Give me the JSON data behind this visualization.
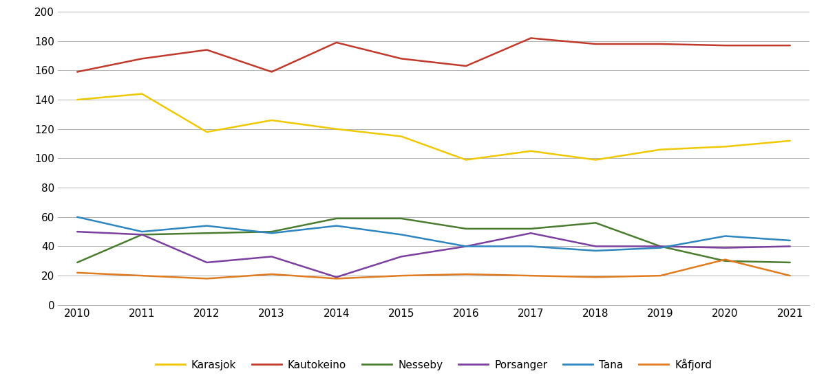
{
  "years": [
    2010,
    2011,
    2012,
    2013,
    2014,
    2015,
    2016,
    2017,
    2018,
    2019,
    2020,
    2021
  ],
  "series": {
    "Karasjok": [
      140,
      144,
      118,
      126,
      120,
      115,
      99,
      105,
      99,
      106,
      108,
      112
    ],
    "Kautokeino": [
      159,
      168,
      174,
      159,
      179,
      168,
      163,
      182,
      178,
      178,
      177,
      177
    ],
    "Nesseby": [
      29,
      48,
      49,
      50,
      59,
      59,
      52,
      52,
      56,
      40,
      30,
      29
    ],
    "Porsanger": [
      50,
      48,
      29,
      33,
      19,
      33,
      40,
      49,
      40,
      40,
      39,
      40
    ],
    "Tana": [
      60,
      50,
      54,
      49,
      54,
      48,
      40,
      40,
      37,
      39,
      47,
      44
    ],
    "Kåfjord": [
      22,
      20,
      18,
      21,
      18,
      20,
      21,
      20,
      19,
      20,
      31,
      20
    ]
  },
  "colors": {
    "Karasjok": "#f0c800",
    "Kautokeino": "#c0392b",
    "Nesseby": "#4a7c2f",
    "Porsanger": "#7b3fa0",
    "Tana": "#2e86c1",
    "Kåfjord": "#e07b20"
  },
  "ylim": [
    0,
    200
  ],
  "yticks": [
    0,
    20,
    40,
    60,
    80,
    100,
    120,
    140,
    160,
    180,
    200
  ],
  "background_color": "#ffffff",
  "grid_color": "#b0b0b0"
}
